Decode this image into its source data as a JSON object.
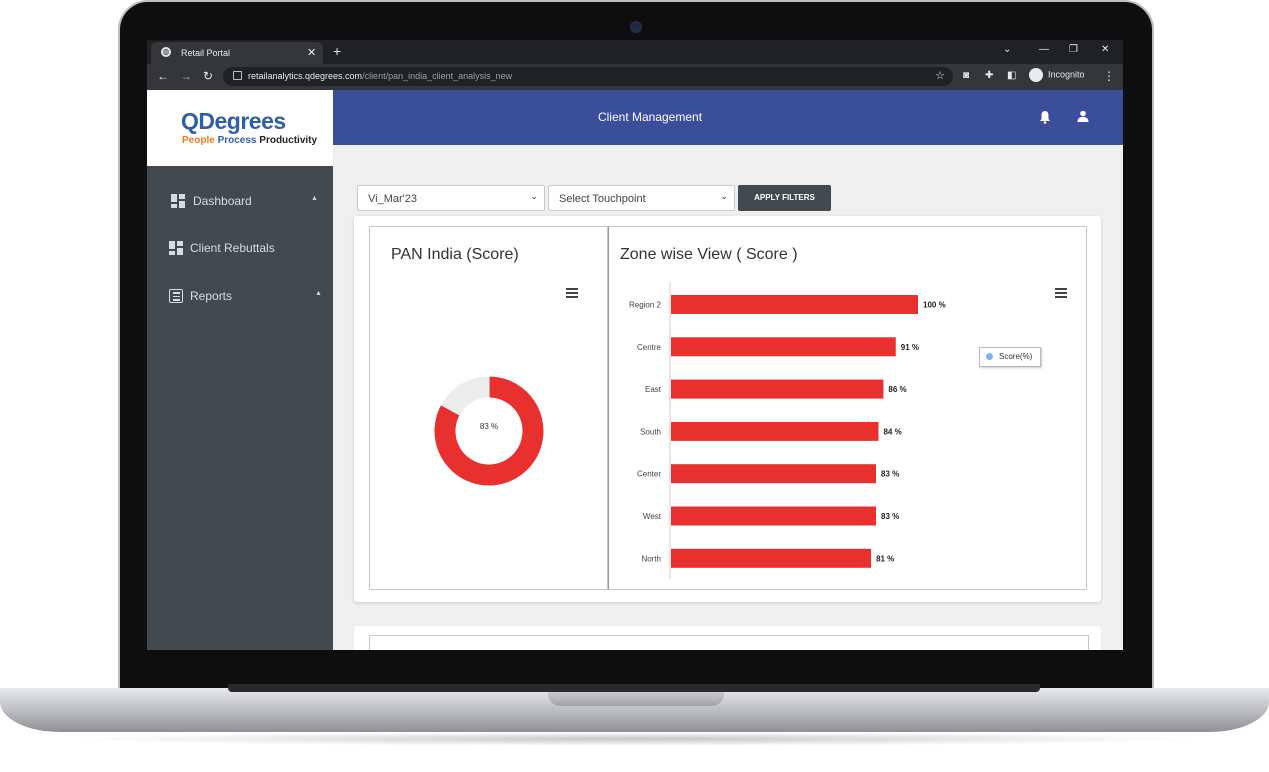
{
  "browser": {
    "tab_title": "Retail Portal",
    "url_host": "retailanalytics.qdegrees.com",
    "url_path": "/client/pan_india_client_analysis_new",
    "profile_label": "Incognito"
  },
  "app": {
    "logo_main": "QDegrees",
    "logo_tag_1": "People",
    "logo_tag_2": "Process",
    "logo_tag_3": "Productivity",
    "header_title": "Client Management"
  },
  "sidebar": {
    "items": [
      {
        "label": "Dashboard",
        "icon": "dashboard-icon"
      },
      {
        "label": "Client Rebuttals",
        "icon": "dashboard-icon"
      },
      {
        "label": "Reports",
        "icon": "report-icon"
      }
    ]
  },
  "filters": {
    "period_value": "Vi_Mar'23",
    "touchpoint_value": "Select Touchpoint",
    "apply_label": "APPLY FILTERS"
  },
  "colors": {
    "bar": "#e8302f",
    "donut_rest": "#ececec",
    "header": "#3a4e9c",
    "legend_dot": "#7cb5ec"
  },
  "chart_data": [
    {
      "type": "pie",
      "title": "PAN India (Score)",
      "values": [
        83,
        17
      ],
      "center_label": "83 %"
    },
    {
      "type": "bar",
      "title": "Zone wise View ( Score )",
      "orientation": "horizontal",
      "categories": [
        "Region 2",
        "Centre",
        "East",
        "South",
        "Center",
        "West",
        "North"
      ],
      "series": [
        {
          "name": "Score(%)",
          "values": [
            100,
            91,
            86,
            84,
            83,
            83,
            81
          ]
        }
      ],
      "value_labels": [
        "100 %",
        "91 %",
        "86 %",
        "84 %",
        "83 %",
        "83 %",
        "81 %"
      ],
      "xlim": [
        0,
        100
      ],
      "grid": false,
      "legend": "right"
    }
  ]
}
